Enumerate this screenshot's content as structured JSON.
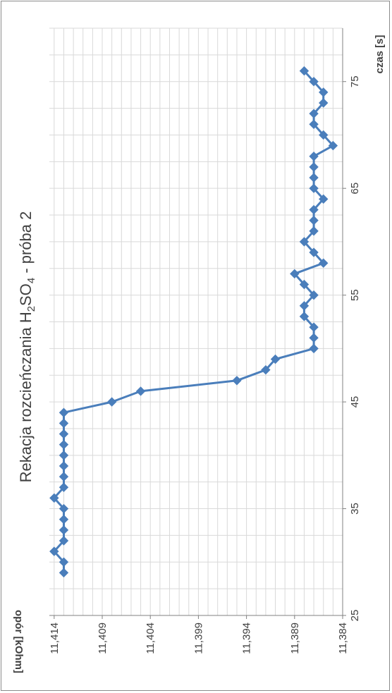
{
  "chart_data": {
    "type": "line",
    "title": "Rekacja rozcieńczania H",
    "title_sub1": "2",
    "title_mid": "SO",
    "title_sub2": "4",
    "title_tail": " - próba 2",
    "xlabel": "czas [s]",
    "ylabel": "opór [kOhm]",
    "xlim": [
      25,
      80
    ],
    "ylim": [
      11.384,
      11.415
    ],
    "y_axis_reversed": true,
    "x_major_ticks": [
      "25",
      "35",
      "45",
      "55",
      "65",
      "75"
    ],
    "y_major_ticks": [
      "11,414",
      "11,409",
      "11,404",
      "11,399",
      "11,394",
      "11,389",
      "11,384"
    ],
    "grid": true,
    "marker": "diamond",
    "color": "#4a7ebb",
    "x": [
      29,
      30,
      31,
      32,
      33,
      34,
      35,
      36,
      37,
      38,
      39,
      40,
      41,
      42,
      43,
      44,
      45,
      46,
      47,
      48,
      49,
      50,
      51,
      52,
      53,
      54,
      55,
      56,
      57,
      58,
      59,
      60,
      61,
      62,
      63,
      64,
      65,
      66,
      67,
      68,
      69,
      70,
      71,
      72,
      73,
      74,
      75,
      76
    ],
    "y": [
      11.413,
      11.413,
      11.414,
      11.413,
      11.413,
      11.413,
      11.413,
      11.414,
      11.413,
      11.413,
      11.413,
      11.413,
      11.413,
      11.413,
      11.413,
      11.413,
      11.408,
      11.405,
      11.395,
      11.392,
      11.391,
      11.387,
      11.387,
      11.387,
      11.388,
      11.388,
      11.387,
      11.388,
      11.389,
      11.386,
      11.387,
      11.388,
      11.387,
      11.387,
      11.387,
      11.386,
      11.387,
      11.387,
      11.387,
      11.387,
      11.385,
      11.386,
      11.387,
      11.387,
      11.386,
      11.386,
      11.387,
      11.388
    ]
  }
}
